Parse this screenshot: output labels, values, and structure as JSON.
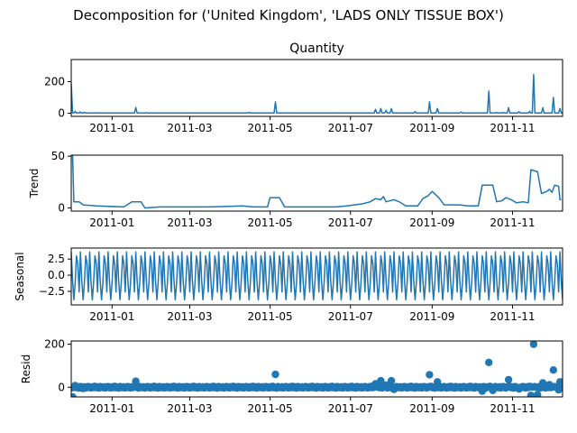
{
  "figure": {
    "suptitle": "Decomposition for ('United Kingdom', 'LADS ONLY TISSUE BOX')"
  },
  "chart_data": [
    {
      "type": "line",
      "id": "observed",
      "title": "Quantity",
      "ylabel": "",
      "x_range": [
        "2010-12-01",
        "2011-12-09"
      ],
      "ylim": [
        -20,
        340
      ],
      "yticks": [
        0,
        200
      ],
      "xticks": [
        "2011-01-01",
        "2011-03-01",
        "2011-05-01",
        "2011-07-01",
        "2011-09-01",
        "2011-11-01"
      ],
      "xtick_labels": [
        "2011-01",
        "2011-03",
        "2011-05",
        "2011-07",
        "2011-09",
        "2011-11"
      ],
      "base": 1,
      "points": [
        [
          "2010-12-01",
          190
        ],
        [
          "2010-12-02",
          3
        ],
        [
          "2010-12-04",
          12
        ],
        [
          "2010-12-06",
          4
        ],
        [
          "2010-12-08",
          8
        ],
        [
          "2010-12-11",
          5
        ],
        [
          "2010-12-14",
          2
        ],
        [
          "2010-12-20",
          3
        ],
        [
          "2011-01-19",
          36
        ],
        [
          "2011-01-27",
          4
        ],
        [
          "2011-02-07",
          2
        ],
        [
          "2011-03-03",
          3
        ],
        [
          "2011-04-15",
          6
        ],
        [
          "2011-05-05",
          72
        ],
        [
          "2011-05-16",
          3
        ],
        [
          "2011-06-18",
          3
        ],
        [
          "2011-07-20",
          24
        ],
        [
          "2011-07-24",
          30
        ],
        [
          "2011-07-28",
          18
        ],
        [
          "2011-08-01",
          30
        ],
        [
          "2011-08-19",
          10
        ],
        [
          "2011-08-30",
          72
        ],
        [
          "2011-09-05",
          30
        ],
        [
          "2011-09-23",
          8
        ],
        [
          "2011-10-14",
          140
        ],
        [
          "2011-10-20",
          5
        ],
        [
          "2011-10-25",
          5
        ],
        [
          "2011-10-29",
          35
        ],
        [
          "2011-11-06",
          10
        ],
        [
          "2011-11-14",
          12
        ],
        [
          "2011-11-17",
          245
        ],
        [
          "2011-11-24",
          35
        ],
        [
          "2011-12-02",
          100
        ],
        [
          "2011-12-07",
          30
        ]
      ]
    },
    {
      "type": "line",
      "id": "trend",
      "title": "",
      "ylabel": "Trend",
      "x_range": [
        "2010-12-01",
        "2011-12-09"
      ],
      "ylim": [
        -3,
        51
      ],
      "yticks": [
        0,
        50
      ],
      "xticks": [
        "2011-01-01",
        "2011-03-01",
        "2011-05-01",
        "2011-07-01",
        "2011-09-01",
        "2011-11-01"
      ],
      "xtick_labels": [
        "2011-01",
        "2011-03",
        "2011-05",
        "2011-07",
        "2011-09",
        "2011-11"
      ],
      "points": [
        [
          "2010-12-02",
          52
        ],
        [
          "2010-12-03",
          6
        ],
        [
          "2010-12-07",
          6
        ],
        [
          "2010-12-10",
          3
        ],
        [
          "2010-12-20",
          2
        ],
        [
          "2011-01-10",
          1
        ],
        [
          "2011-01-16",
          6
        ],
        [
          "2011-01-23",
          6
        ],
        [
          "2011-01-26",
          0
        ],
        [
          "2011-02-06",
          1
        ],
        [
          "2011-03-01",
          1
        ],
        [
          "2011-03-15",
          1
        ],
        [
          "2011-04-10",
          2
        ],
        [
          "2011-04-18",
          1
        ],
        [
          "2011-04-29",
          1
        ],
        [
          "2011-05-01",
          10
        ],
        [
          "2011-05-08",
          10
        ],
        [
          "2011-05-12",
          1
        ],
        [
          "2011-06-20",
          1
        ],
        [
          "2011-06-28",
          2
        ],
        [
          "2011-07-10",
          4
        ],
        [
          "2011-07-16",
          6
        ],
        [
          "2011-07-20",
          9
        ],
        [
          "2011-07-24",
          8
        ],
        [
          "2011-07-26",
          11
        ],
        [
          "2011-07-28",
          6
        ],
        [
          "2011-08-03",
          8
        ],
        [
          "2011-08-07",
          6
        ],
        [
          "2011-08-12",
          2
        ],
        [
          "2011-08-21",
          2
        ],
        [
          "2011-08-25",
          9
        ],
        [
          "2011-08-29",
          12
        ],
        [
          "2011-09-01",
          16
        ],
        [
          "2011-09-06",
          10
        ],
        [
          "2011-09-10",
          3
        ],
        [
          "2011-09-22",
          3
        ],
        [
          "2011-09-28",
          2
        ],
        [
          "2011-10-06",
          2
        ],
        [
          "2011-10-09",
          22
        ],
        [
          "2011-10-17",
          22
        ],
        [
          "2011-10-20",
          6
        ],
        [
          "2011-10-24",
          7
        ],
        [
          "2011-10-27",
          10
        ],
        [
          "2011-10-31",
          8
        ],
        [
          "2011-11-04",
          5
        ],
        [
          "2011-11-09",
          6
        ],
        [
          "2011-11-13",
          5
        ],
        [
          "2011-11-15",
          37
        ],
        [
          "2011-11-20",
          35
        ],
        [
          "2011-11-23",
          14
        ],
        [
          "2011-11-27",
          16
        ],
        [
          "2011-11-29",
          18
        ],
        [
          "2011-12-01",
          15
        ],
        [
          "2011-12-03",
          22
        ],
        [
          "2011-12-06",
          21
        ],
        [
          "2011-12-07",
          8
        ],
        [
          "2011-12-08",
          8
        ]
      ]
    },
    {
      "type": "line",
      "id": "seasonal",
      "title": "",
      "ylabel": "Seasonal",
      "x_range": [
        "2010-12-01",
        "2011-12-09"
      ],
      "ylim": [
        -4.6,
        4.2
      ],
      "yticks": [
        -2.5,
        0.0,
        2.5
      ],
      "ytick_labels": [
        "−2.5",
        "0.0",
        "2.5"
      ],
      "xticks": [
        "2011-01-01",
        "2011-03-01",
        "2011-05-01",
        "2011-07-01",
        "2011-09-01",
        "2011-11-01"
      ],
      "xtick_labels": [
        "2011-01",
        "2011-03",
        "2011-05",
        "2011-07",
        "2011-09",
        "2011-11"
      ],
      "start": "2010-12-01",
      "end": "2011-12-09",
      "weekly_pattern": [
        3.6,
        -0.8,
        -3.8,
        -1.2,
        3.0,
        1.8,
        -2.6
      ]
    },
    {
      "type": "scatter",
      "id": "resid",
      "title": "",
      "ylabel": "Resid",
      "x_range": [
        "2010-12-01",
        "2011-12-09"
      ],
      "ylim": [
        -45,
        215
      ],
      "yticks": [
        0,
        200
      ],
      "xticks": [
        "2011-01-01",
        "2011-03-01",
        "2011-05-01",
        "2011-07-01",
        "2011-09-01",
        "2011-11-01"
      ],
      "xtick_labels": [
        "2011-01",
        "2011-03",
        "2011-05",
        "2011-07",
        "2011-09",
        "2011-11"
      ],
      "start": "2010-12-01",
      "end": "2011-12-09",
      "noise": [
        -3,
        2,
        -1,
        4,
        -2,
        1,
        -4,
        3,
        0,
        -2,
        2,
        -3,
        1,
        3,
        -1
      ],
      "outliers": [
        [
          "2010-12-02",
          -45
        ],
        [
          "2010-12-04",
          8
        ],
        [
          "2010-12-10",
          -6
        ],
        [
          "2011-01-19",
          28
        ],
        [
          "2011-05-05",
          60
        ],
        [
          "2011-07-20",
          16
        ],
        [
          "2011-07-24",
          30
        ],
        [
          "2011-07-28",
          10
        ],
        [
          "2011-08-01",
          30
        ],
        [
          "2011-08-03",
          -10
        ],
        [
          "2011-08-30",
          58
        ],
        [
          "2011-09-05",
          25
        ],
        [
          "2011-10-09",
          -18
        ],
        [
          "2011-10-14",
          115
        ],
        [
          "2011-10-17",
          -15
        ],
        [
          "2011-10-29",
          35
        ],
        [
          "2011-11-06",
          -8
        ],
        [
          "2011-11-15",
          -38
        ],
        [
          "2011-11-17",
          200
        ],
        [
          "2011-11-20",
          -35
        ],
        [
          "2011-11-24",
          20
        ],
        [
          "2011-11-29",
          12
        ],
        [
          "2011-12-02",
          80
        ],
        [
          "2011-12-06",
          -12
        ],
        [
          "2011-12-07",
          25
        ]
      ]
    }
  ]
}
